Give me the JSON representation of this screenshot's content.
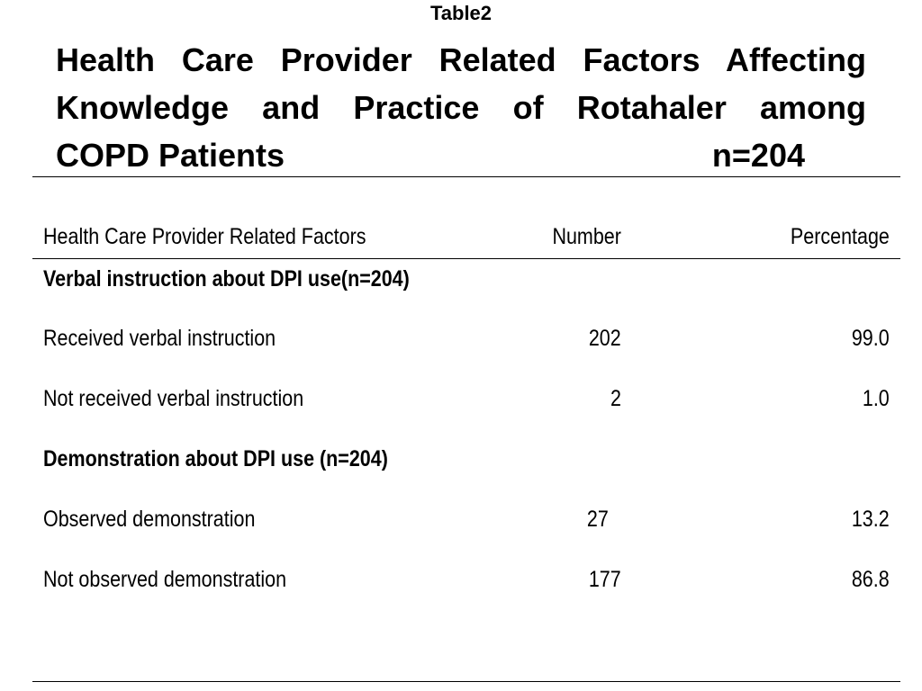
{
  "table_label": "Table2",
  "title": {
    "line1": "Health Care Provider Related Factors Affecting",
    "line2": "Knowledge and Practice of Rotahaler among",
    "line3_text": "COPD Patients",
    "line3_n": "n=204"
  },
  "table": {
    "headers": {
      "factor": "Health Care Provider Related Factors",
      "number": "Number",
      "percentage": "Percentage"
    },
    "sections": [
      {
        "heading": "Verbal instruction about DPI use(n=204)",
        "rows": [
          {
            "label": "Received verbal instruction",
            "number": "202",
            "percentage": "99.0"
          },
          {
            "label": "Not received verbal instruction",
            "number": "2",
            "percentage": "1.0"
          }
        ]
      },
      {
        "heading": "Demonstration about DPI use (n=204)",
        "rows": [
          {
            "label": "Observed demonstration",
            "number": "27",
            "percentage": "13.2"
          },
          {
            "label": "Not observed demonstration",
            "number": "177",
            "percentage": "86.8"
          }
        ]
      }
    ]
  }
}
